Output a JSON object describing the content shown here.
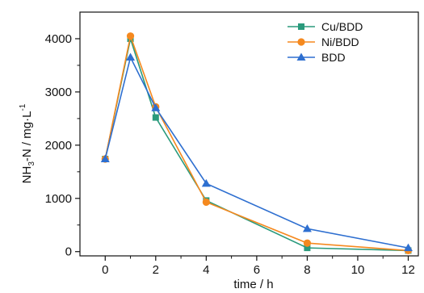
{
  "chart_data": {
    "type": "line",
    "title": "",
    "xlabel": "time / h",
    "ylabel": {
      "base": "NH",
      "sub": "3",
      "middle": "-N / mg·L",
      "sup": "-1"
    },
    "xlim": [
      -1,
      12.4
    ],
    "ylim": [
      -80,
      4500
    ],
    "xticks": [
      0,
      2,
      4,
      6,
      8,
      10,
      12
    ],
    "yticks": [
      0,
      1000,
      2000,
      3000,
      4000
    ],
    "x": [
      0,
      1,
      2,
      4,
      8,
      12
    ],
    "series": [
      {
        "name": "Cu/BDD",
        "color": "#2a9a7c",
        "marker": "square",
        "values": [
          1740,
          4000,
          2520,
          960,
          70,
          20
        ]
      },
      {
        "name": "Ni/BDD",
        "color": "#f5891f",
        "marker": "circle",
        "values": [
          1740,
          4050,
          2720,
          930,
          160,
          20
        ]
      },
      {
        "name": "BDD",
        "color": "#2e6fd0",
        "marker": "triangle",
        "values": [
          1740,
          3650,
          2700,
          1280,
          430,
          70
        ]
      }
    ],
    "legend": "top-right",
    "grid": false
  }
}
